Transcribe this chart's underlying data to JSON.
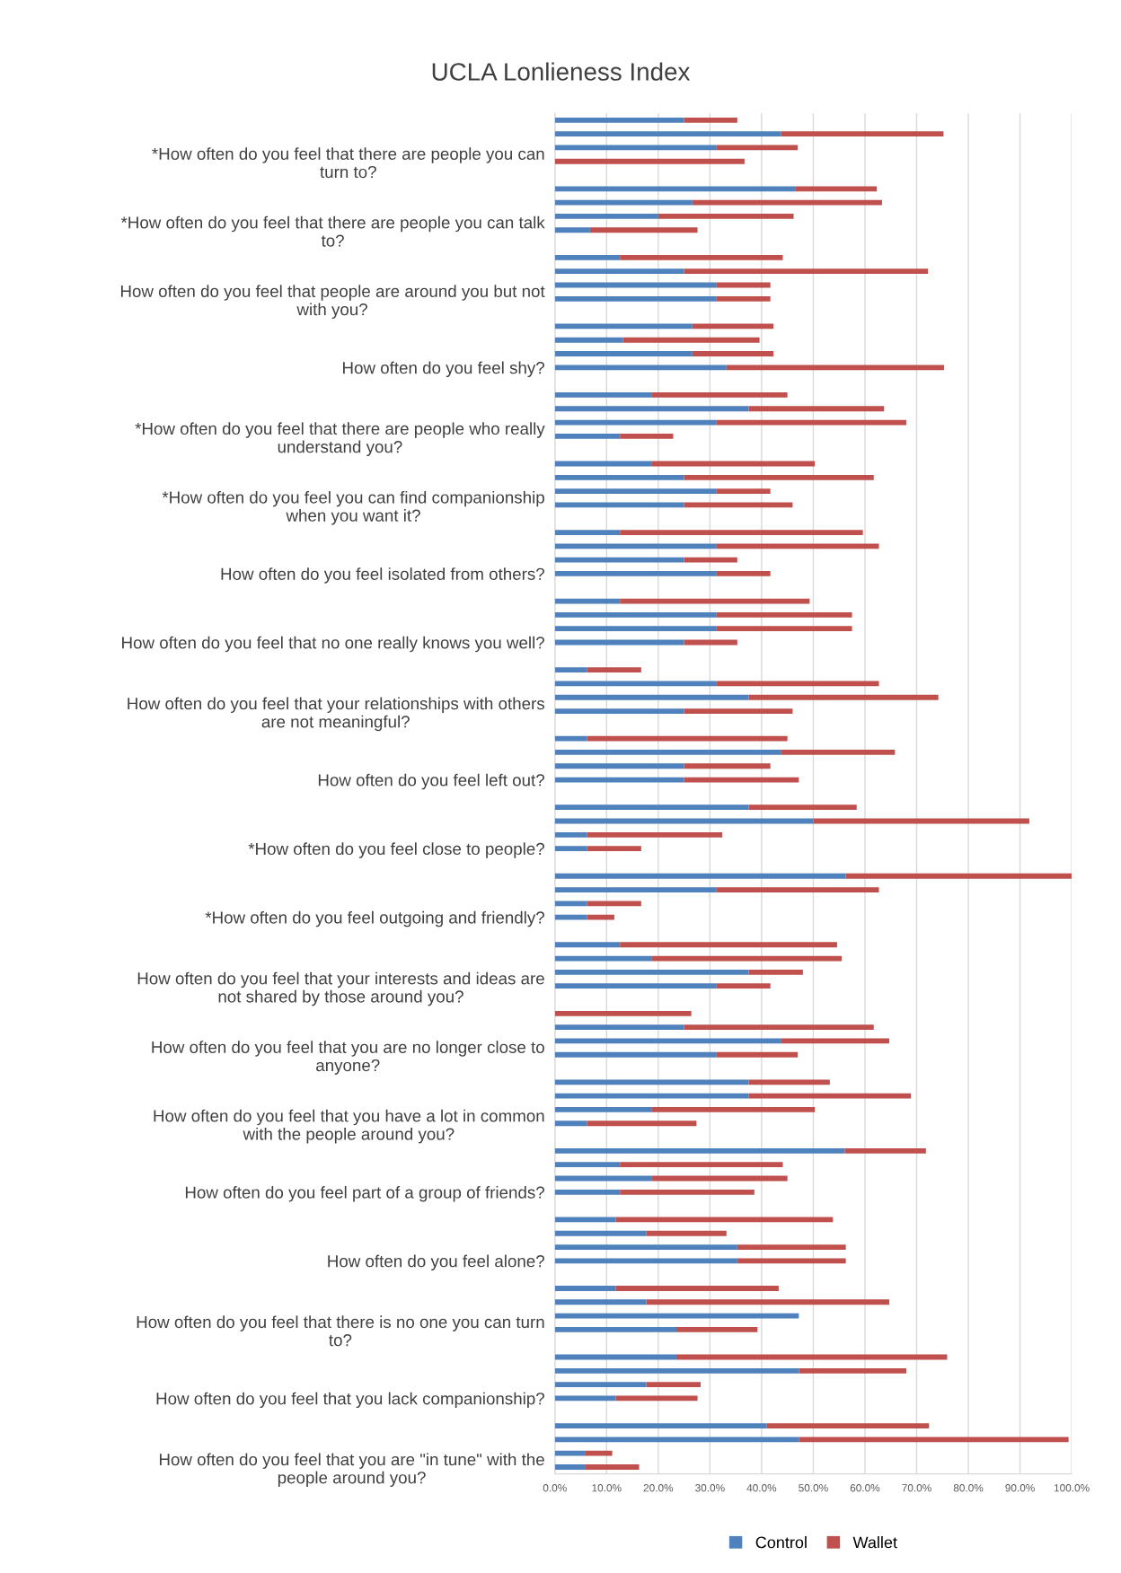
{
  "chart_data": {
    "type": "bar",
    "orientation": "horizontal",
    "stacked": true,
    "title": "UCLA Lonlieness Index",
    "categories": [
      null,
      null,
      null,
      "*How often do you feel that there are people you can\nturn to?",
      null,
      null,
      null,
      null,
      "*How often do you feel that there are people you can talk\nto?",
      null,
      null,
      null,
      null,
      "How often do you feel that people are around you but not\nwith you?",
      null,
      null,
      null,
      null,
      "How often do you feel shy?",
      null,
      null,
      null,
      null,
      "*How often do you feel that there are people who really\nunderstand you?",
      null,
      null,
      null,
      null,
      "*How often do you feel you can find companionship\nwhen you want it?",
      null,
      null,
      null,
      null,
      "How often do you feel isolated from others?",
      null,
      null,
      null,
      null,
      "How often do you feel that no one really knows you well?",
      null,
      null,
      null,
      null,
      "How often do you feel that your relationships with others\nare not meaningful?",
      null,
      null,
      null,
      null,
      "How often do you feel left out?",
      null,
      null,
      null,
      null,
      "*How often do you feel close to people?",
      null,
      null,
      null,
      null,
      "*How often do you feel outgoing and friendly?",
      null,
      null,
      null,
      null,
      "How often do you feel that your interests and ideas are\nnot shared by those around you?",
      null,
      null,
      null,
      null,
      "How often do you feel that you are no longer close to\nanyone?",
      null,
      null,
      null,
      null,
      "How often do you feel that you have a lot in common\nwith the people around you?",
      null,
      null,
      null,
      null,
      "How often do you feel part of a group of friends?",
      null,
      null,
      null,
      null,
      "How often do you feel alone?",
      null,
      null,
      null,
      null,
      "How often do you feel that there is no one you can turn\nto?",
      null,
      null,
      null,
      null,
      "How often do you feel that you lack companionship?",
      null,
      null,
      null,
      null,
      "How often do you feel that you are \"in tune\" with the\npeople around you?"
    ],
    "series": [
      {
        "name": "Control",
        "color": "#4f81bd",
        "values": [
          25,
          43.8,
          31.3,
          0,
          null,
          46.6,
          26.6,
          20,
          6.8,
          null,
          12.6,
          25,
          31.3,
          31.3,
          null,
          26.6,
          13.2,
          26.6,
          33.2,
          null,
          18.8,
          37.5,
          31.3,
          12.6,
          null,
          18.8,
          25,
          31.3,
          25,
          null,
          12.6,
          31.3,
          25,
          31.3,
          null,
          12.6,
          31.3,
          31.3,
          25,
          null,
          6.2,
          31.3,
          37.5,
          25,
          null,
          6.2,
          43.7,
          25,
          25,
          null,
          37.5,
          50,
          6.2,
          6.2,
          null,
          56.3,
          31.3,
          6.2,
          6.2,
          null,
          12.6,
          18.8,
          37.5,
          31.3,
          null,
          0,
          25,
          43.7,
          31.3,
          null,
          37.5,
          37.5,
          18.8,
          6.2,
          null,
          56.1,
          12.6,
          18.8,
          12.6,
          null,
          11.8,
          17.7,
          35.3,
          35.3,
          null,
          11.8,
          17.7,
          47.2,
          23.5,
          null,
          23.5,
          47.2,
          17.7,
          11.8,
          null,
          41,
          47.2,
          5.8,
          5.8
        ]
      },
      {
        "name": "Wallet",
        "color": "#c0504d",
        "values": [
          10.3,
          31.4,
          15.7,
          36.7,
          null,
          15.7,
          36.7,
          26.2,
          20.8,
          null,
          31.5,
          47.2,
          10.4,
          10.4,
          null,
          15.7,
          26.4,
          15.7,
          42.1,
          null,
          26.2,
          26.2,
          36.7,
          10.3,
          null,
          31.5,
          36.7,
          10.4,
          21,
          null,
          47,
          31.4,
          10.3,
          10.4,
          null,
          36.7,
          26.2,
          26.2,
          10.3,
          null,
          10.5,
          31.4,
          36.7,
          21,
          null,
          38.8,
          22.1,
          16.7,
          22.2,
          null,
          20.9,
          41.8,
          26.2,
          10.5,
          null,
          43.7,
          31.4,
          10.5,
          5.3,
          null,
          42,
          36.7,
          10.5,
          10.4,
          null,
          26.4,
          36.7,
          21,
          15.7,
          null,
          15.7,
          31.4,
          31.5,
          21.2,
          null,
          15.7,
          31.5,
          26.2,
          26,
          null,
          42,
          15.5,
          21,
          21,
          null,
          31.5,
          47,
          0,
          15.7,
          null,
          52.4,
          20.8,
          10.5,
          15.8,
          null,
          31.4,
          52.2,
          5.3,
          10.5
        ]
      }
    ],
    "xlim": [
      0,
      100
    ],
    "xticks": [
      {
        "value": 0,
        "label": "0.0%"
      },
      {
        "value": 10,
        "label": "10.0%"
      },
      {
        "value": 20,
        "label": "20.0%"
      },
      {
        "value": 30,
        "label": "30.0%"
      },
      {
        "value": 40,
        "label": "40.0%"
      },
      {
        "value": 50,
        "label": "50.0%"
      },
      {
        "value": 60,
        "label": "60.0%"
      },
      {
        "value": 70,
        "label": "70.0%"
      },
      {
        "value": 80,
        "label": "80.0%"
      },
      {
        "value": 90,
        "label": "90.0%"
      },
      {
        "value": 100,
        "label": "100.0%"
      }
    ],
    "grid": "x",
    "legend": "bottom"
  }
}
